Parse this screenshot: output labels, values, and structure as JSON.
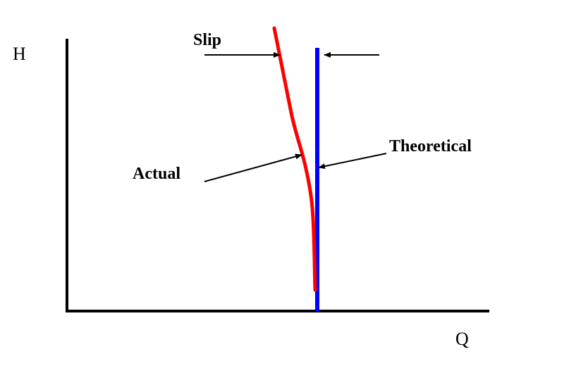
{
  "diagram": {
    "axes": {
      "y_label": "H",
      "x_label": "Q"
    },
    "curves": {
      "actual": {
        "label": "Actual",
        "color": "#ff0000"
      },
      "theoretical": {
        "label": "Theoretical",
        "color": "#0000ff"
      }
    },
    "annotations": {
      "slip": "Slip"
    },
    "colors": {
      "axis": "#000000",
      "background": "#ffffff"
    }
  }
}
